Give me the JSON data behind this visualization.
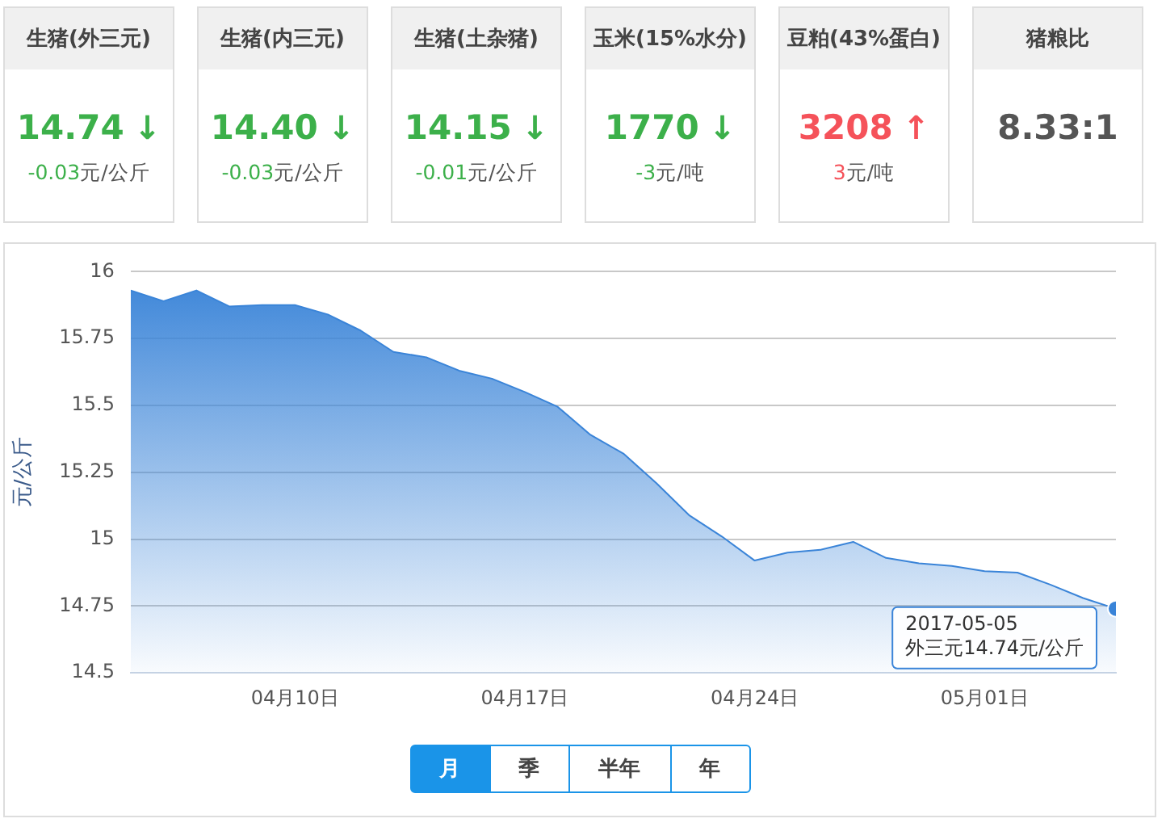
{
  "chart_data": [
    {
      "type": "other",
      "title": "生猪(外三元)",
      "color": "#3cb04a",
      "annotations": [
        "14.74",
        "↓",
        "-0.03元/公斤"
      ]
    },
    {
      "type": "other",
      "title": "生猪(内三元)",
      "color": "#3cb04a",
      "annotations": [
        "14.40",
        "↓",
        "-0.03元/公斤"
      ]
    },
    {
      "type": "other",
      "title": "生猪(土杂猪)",
      "color": "#3cb04a",
      "annotations": [
        "14.15",
        "↓",
        "-0.01元/公斤"
      ]
    },
    {
      "type": "other",
      "title": "玉米(15%水分)",
      "color": "#3cb04a",
      "annotations": [
        "1770",
        "↓",
        "-3元/吨"
      ]
    },
    {
      "type": "other",
      "title": "豆粕(43%蛋白)",
      "color": "#f5525a",
      "annotations": [
        "3208",
        "↑",
        "3元/吨"
      ]
    },
    {
      "type": "other",
      "title": "猪粮比",
      "color": "#555555",
      "annotations": [
        "8.33:1"
      ]
    },
    {
      "type": "area",
      "ylabel": "元/公斤",
      "x": [
        "2017-04-05",
        "2017-04-06",
        "2017-04-07",
        "2017-04-08",
        "2017-04-09",
        "2017-04-10",
        "2017-04-11",
        "2017-04-12",
        "2017-04-13",
        "2017-04-14",
        "2017-04-15",
        "2017-04-16",
        "2017-04-17",
        "2017-04-18",
        "2017-04-19",
        "2017-04-20",
        "2017-04-21",
        "2017-04-22",
        "2017-04-23",
        "2017-04-24",
        "2017-04-25",
        "2017-04-26",
        "2017-04-27",
        "2017-04-28",
        "2017-04-29",
        "2017-04-30",
        "2017-05-01",
        "2017-05-02",
        "2017-05-03",
        "2017-05-04",
        "2017-05-05"
      ],
      "series": [
        {
          "color": "#3a84d8",
          "values": [
            15.93,
            15.89,
            15.93,
            15.87,
            15.875,
            15.875,
            15.84,
            15.78,
            15.7,
            15.68,
            15.63,
            15.6,
            15.55,
            15.495,
            15.39,
            15.32,
            15.21,
            15.09,
            15.01,
            14.92,
            14.95,
            14.96,
            14.99,
            14.93,
            14.91,
            14.9,
            14.88,
            14.875,
            14.83,
            14.78,
            14.74
          ]
        }
      ],
      "xlim": [
        "2017-04-05",
        "2017-05-05"
      ],
      "xticks": [
        {
          "value": "2017-04-10",
          "label": "04月10日"
        },
        {
          "value": "2017-04-17",
          "label": "04月17日"
        },
        {
          "value": "2017-04-24",
          "label": "04月24日"
        },
        {
          "value": "2017-05-01",
          "label": "05月01日"
        }
      ],
      "ylim": [
        14.5,
        16
      ],
      "yticks": [
        14.5,
        14.75,
        15,
        15.25,
        15.5,
        15.75,
        16
      ],
      "grid": "y",
      "legend": false,
      "marker": "none",
      "annotations": [
        {
          "text": "2017-05-05\n外三元14.74元/公斤",
          "x": "2017-05-05",
          "y": 14.74
        },
        "月",
        "季",
        "半年",
        "年"
      ]
    }
  ]
}
